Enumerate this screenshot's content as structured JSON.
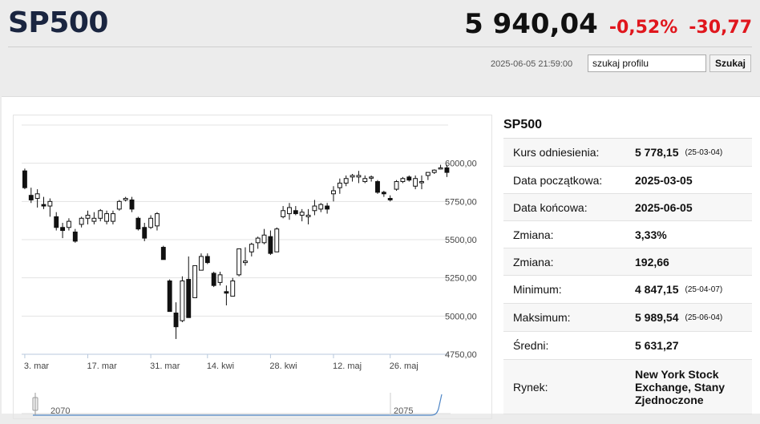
{
  "header": {
    "symbol": "SP500",
    "price": "5 940,04",
    "change_pct": "-0,52%",
    "change_abs": "-30,77",
    "timestamp": "2025-06-05 21:59:00",
    "search_value": "szukaj profilu",
    "search_button": "Szukaj"
  },
  "info": {
    "title": "SP500",
    "rows": [
      {
        "label": "Kurs odniesienia:",
        "value": "5 778,15",
        "note": "(25-03-04)"
      },
      {
        "label": "Data początkowa:",
        "value": "2025-03-05",
        "note": ""
      },
      {
        "label": "Data końcowa:",
        "value": "2025-06-05",
        "note": ""
      },
      {
        "label": "Zmiana:",
        "value": "3,33%",
        "note": ""
      },
      {
        "label": "Zmiana:",
        "value": "192,66",
        "note": ""
      },
      {
        "label": "Minimum:",
        "value": "4 847,15",
        "note": "(25-04-07)"
      },
      {
        "label": "Maksimum:",
        "value": "5 989,54",
        "note": "(25-06-04)"
      },
      {
        "label": "Średni:",
        "value": "5 631,27",
        "note": ""
      },
      {
        "label": "Rynek:",
        "value": "New York Stock Exchange, Stany Zjednoczone",
        "note": ""
      }
    ]
  },
  "chart_data": {
    "type": "candlestick",
    "y_ticks": [
      "6000,00",
      "5750,00",
      "5500,00",
      "5250,00",
      "5000,00",
      "4750,00"
    ],
    "y_tick_values": [
      6000,
      5750,
      5500,
      5250,
      5000,
      4750
    ],
    "ylim": [
      4750,
      6250
    ],
    "x_ticks": [
      {
        "label": "3. mar",
        "index": 0
      },
      {
        "label": "17. mar",
        "index": 10
      },
      {
        "label": "31. mar",
        "index": 20
      },
      {
        "label": "14. kwi",
        "index": 29
      },
      {
        "label": "28. kwi",
        "index": 39
      },
      {
        "label": "12. maj",
        "index": 49
      },
      {
        "label": "26. maj",
        "index": 58
      }
    ],
    "candles": [
      [
        5950,
        5965,
        5830,
        5840
      ],
      [
        5790,
        5840,
        5740,
        5760
      ],
      [
        5770,
        5830,
        5710,
        5800
      ],
      [
        5730,
        5780,
        5700,
        5720
      ],
      [
        5720,
        5770,
        5650,
        5750
      ],
      [
        5650,
        5680,
        5560,
        5580
      ],
      [
        5580,
        5610,
        5510,
        5560
      ],
      [
        5580,
        5640,
        5560,
        5620
      ],
      [
        5550,
        5570,
        5480,
        5490
      ],
      [
        5600,
        5650,
        5580,
        5640
      ],
      [
        5640,
        5690,
        5600,
        5660
      ],
      [
        5620,
        5680,
        5600,
        5640
      ],
      [
        5640,
        5700,
        5620,
        5690
      ],
      [
        5620,
        5690,
        5600,
        5670
      ],
      [
        5620,
        5690,
        5600,
        5670
      ],
      [
        5700,
        5760,
        5690,
        5750
      ],
      [
        5760,
        5780,
        5750,
        5770
      ],
      [
        5760,
        5780,
        5680,
        5700
      ],
      [
        5640,
        5650,
        5560,
        5570
      ],
      [
        5580,
        5610,
        5490,
        5510
      ],
      [
        5580,
        5660,
        5570,
        5640
      ],
      [
        5590,
        5680,
        5560,
        5670
      ],
      [
        5450,
        5460,
        5370,
        5370
      ],
      [
        5230,
        5240,
        5030,
        5030
      ],
      [
        5020,
        5090,
        4850,
        4930
      ],
      [
        4970,
        5260,
        4960,
        5230
      ],
      [
        5240,
        5390,
        4990,
        4990
      ],
      [
        5120,
        5330,
        5120,
        5330
      ],
      [
        5300,
        5410,
        5300,
        5390
      ],
      [
        5390,
        5410,
        5340,
        5350
      ],
      [
        5280,
        5290,
        5190,
        5200
      ],
      [
        5220,
        5290,
        5200,
        5270
      ],
      [
        5160,
        5200,
        5070,
        5150
      ],
      [
        5130,
        5250,
        5130,
        5230
      ],
      [
        5270,
        5440,
        5260,
        5440
      ],
      [
        5350,
        5450,
        5330,
        5360
      ],
      [
        5420,
        5480,
        5390,
        5470
      ],
      [
        5480,
        5520,
        5440,
        5510
      ],
      [
        5480,
        5570,
        5470,
        5530
      ],
      [
        5520,
        5560,
        5400,
        5410
      ],
      [
        5420,
        5580,
        5420,
        5570
      ],
      [
        5650,
        5720,
        5640,
        5690
      ],
      [
        5670,
        5740,
        5630,
        5710
      ],
      [
        5690,
        5720,
        5660,
        5670
      ],
      [
        5660,
        5700,
        5620,
        5680
      ],
      [
        5650,
        5700,
        5600,
        5660
      ],
      [
        5690,
        5760,
        5660,
        5720
      ],
      [
        5700,
        5740,
        5680,
        5730
      ],
      [
        5720,
        5740,
        5670,
        5700
      ],
      [
        5800,
        5850,
        5750,
        5820
      ],
      [
        5840,
        5900,
        5800,
        5870
      ],
      [
        5870,
        5920,
        5850,
        5900
      ],
      [
        5910,
        5930,
        5880,
        5920
      ],
      [
        5910,
        5950,
        5870,
        5920
      ],
      [
        5880,
        5920,
        5870,
        5900
      ],
      [
        5910,
        5920,
        5880,
        5910
      ],
      [
        5880,
        5890,
        5800,
        5810
      ],
      [
        5810,
        5820,
        5780,
        5800
      ],
      [
        5770,
        5790,
        5750,
        5760
      ],
      [
        5830,
        5890,
        5820,
        5880
      ],
      [
        5880,
        5910,
        5870,
        5900
      ],
      [
        5910,
        5920,
        5880,
        5890
      ],
      [
        5850,
        5920,
        5830,
        5900
      ],
      [
        5880,
        5920,
        5830,
        5880
      ],
      [
        5920,
        5940,
        5890,
        5940
      ],
      [
        5940,
        5960,
        5930,
        5955
      ],
      [
        5970,
        5990,
        5960,
        5970
      ],
      [
        5970,
        5990,
        5910,
        5940
      ]
    ],
    "navigator_labels": [
      "2070",
      "2075"
    ]
  }
}
